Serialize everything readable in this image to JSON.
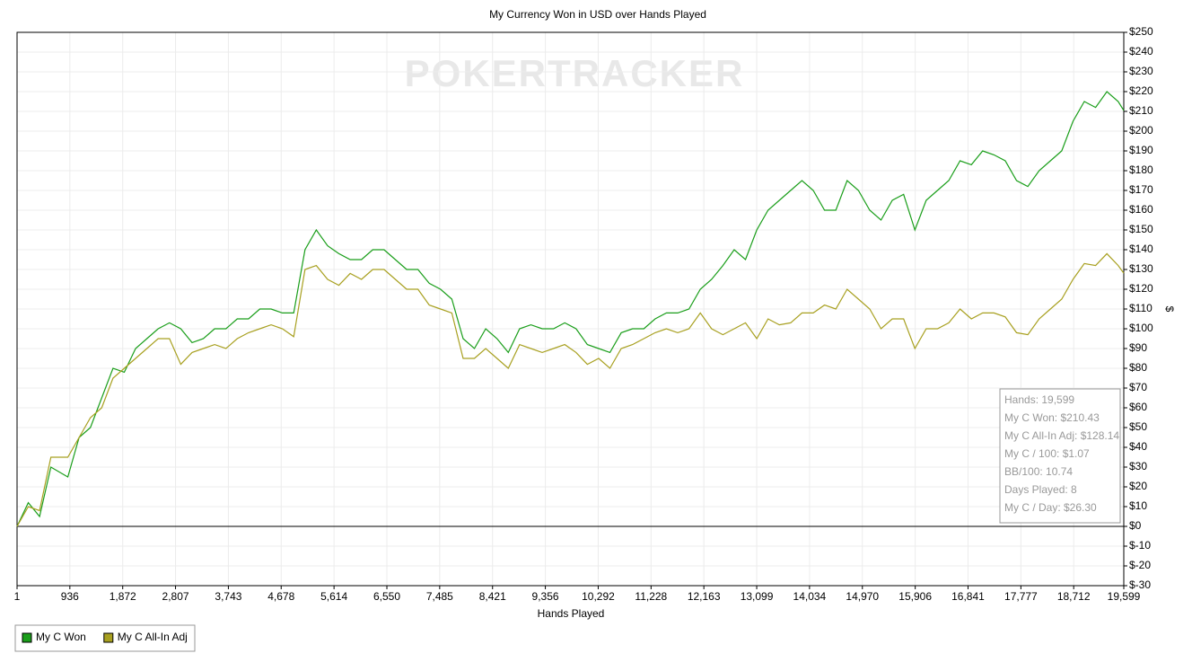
{
  "chart_data": {
    "type": "line",
    "title": "My Currency Won in USD over Hands Played",
    "watermark": "POKERTRACKER",
    "x_label": "Hands Played",
    "y_label": "$",
    "grid": true,
    "xlim": [
      1,
      19599
    ],
    "ylim": [
      -30,
      250
    ],
    "xticks": [
      1,
      936,
      {
        "value": 1872,
        "label": "1,872"
      },
      {
        "value": 2807,
        "label": "2,807"
      },
      {
        "value": 3743,
        "label": "3,743"
      },
      {
        "value": 4678,
        "label": "4,678"
      },
      {
        "value": 5614,
        "label": "5,614"
      },
      {
        "value": 6550,
        "label": "6,550"
      },
      {
        "value": 7485,
        "label": "7,485"
      },
      {
        "value": 8421,
        "label": "8,421"
      },
      {
        "value": 9356,
        "label": "9,356"
      },
      {
        "value": 10292,
        "label": "10,292"
      },
      {
        "value": 11228,
        "label": "11,228"
      },
      {
        "value": 12163,
        "label": "12,163"
      },
      {
        "value": 13099,
        "label": "13,099"
      },
      {
        "value": 14034,
        "label": "14,034"
      },
      {
        "value": 14970,
        "label": "14,970"
      },
      {
        "value": 15906,
        "label": "15,906"
      },
      {
        "value": 16841,
        "label": "16,841"
      },
      {
        "value": 17777,
        "label": "17,777"
      },
      {
        "value": 18712,
        "label": "18,712"
      },
      {
        "value": 19599,
        "label": "19,599"
      }
    ],
    "yticks": [
      {
        "value": -30,
        "label": "$-30"
      },
      {
        "value": -20,
        "label": "$-20"
      },
      {
        "value": -10,
        "label": "$-10"
      },
      {
        "value": 0,
        "label": "$0"
      },
      {
        "value": 10,
        "label": "$10"
      },
      {
        "value": 20,
        "label": "$20"
      },
      {
        "value": 30,
        "label": "$30"
      },
      {
        "value": 40,
        "label": "$40"
      },
      {
        "value": 50,
        "label": "$50"
      },
      {
        "value": 60,
        "label": "$60"
      },
      {
        "value": 70,
        "label": "$70"
      },
      {
        "value": 80,
        "label": "$80"
      },
      {
        "value": 90,
        "label": "$90"
      },
      {
        "value": 100,
        "label": "$100"
      },
      {
        "value": 110,
        "label": "$110"
      },
      {
        "value": 120,
        "label": "$120"
      },
      {
        "value": 130,
        "label": "$130"
      },
      {
        "value": 140,
        "label": "$140"
      },
      {
        "value": 150,
        "label": "$150"
      },
      {
        "value": 160,
        "label": "$160"
      },
      {
        "value": 170,
        "label": "$170"
      },
      {
        "value": 180,
        "label": "$180"
      },
      {
        "value": 190,
        "label": "$190"
      },
      {
        "value": 200,
        "label": "$200"
      },
      {
        "value": 210,
        "label": "$210"
      },
      {
        "value": 220,
        "label": "$220"
      },
      {
        "value": 230,
        "label": "$230"
      },
      {
        "value": 240,
        "label": "$240"
      },
      {
        "value": 250,
        "label": "$250"
      }
    ],
    "x": [
      1,
      200,
      400,
      600,
      900,
      1100,
      1300,
      1500,
      1700,
      1900,
      2100,
      2300,
      2500,
      2700,
      2900,
      3100,
      3300,
      3500,
      3700,
      3900,
      4100,
      4300,
      4500,
      4700,
      4900,
      5100,
      5300,
      5500,
      5700,
      5900,
      6100,
      6300,
      6500,
      6700,
      6900,
      7100,
      7300,
      7500,
      7700,
      7900,
      8100,
      8300,
      8500,
      8700,
      8900,
      9100,
      9300,
      9500,
      9700,
      9900,
      10100,
      10300,
      10500,
      10700,
      10900,
      11100,
      11300,
      11500,
      11700,
      11900,
      12100,
      12300,
      12500,
      12700,
      12900,
      13100,
      13300,
      13500,
      13700,
      13900,
      14100,
      14300,
      14500,
      14700,
      14900,
      15100,
      15300,
      15500,
      15700,
      15900,
      16100,
      16300,
      16500,
      16700,
      16900,
      17100,
      17300,
      17500,
      17700,
      17900,
      18100,
      18300,
      18500,
      18700,
      18900,
      19100,
      19300,
      19500,
      19599
    ],
    "series": [
      {
        "name": "My C Won",
        "color": "#1a9e1a",
        "values": [
          0,
          12,
          5,
          30,
          25,
          45,
          50,
          65,
          80,
          78,
          90,
          95,
          100,
          103,
          100,
          93,
          95,
          100,
          100,
          105,
          105,
          110,
          110,
          108,
          108,
          140,
          150,
          142,
          138,
          135,
          135,
          140,
          140,
          135,
          130,
          130,
          123,
          120,
          115,
          95,
          90,
          100,
          95,
          88,
          100,
          102,
          100,
          100,
          103,
          100,
          92,
          90,
          88,
          98,
          100,
          100,
          105,
          108,
          108,
          110,
          120,
          125,
          132,
          140,
          135,
          150,
          160,
          165,
          170,
          175,
          170,
          160,
          160,
          175,
          170,
          160,
          155,
          165,
          168,
          150,
          165,
          170,
          175,
          185,
          183,
          190,
          188,
          185,
          175,
          172,
          180,
          185,
          190,
          205,
          215,
          212,
          220,
          215,
          210.43
        ]
      },
      {
        "name": "My C All-In Adj",
        "color": "#a8a020",
        "values": [
          0,
          10,
          8,
          35,
          35,
          45,
          55,
          60,
          75,
          80,
          85,
          90,
          95,
          95,
          82,
          88,
          90,
          92,
          90,
          95,
          98,
          100,
          102,
          100,
          96,
          130,
          132,
          125,
          122,
          128,
          125,
          130,
          130,
          125,
          120,
          120,
          112,
          110,
          108,
          85,
          85,
          90,
          85,
          80,
          92,
          90,
          88,
          90,
          92,
          88,
          82,
          85,
          80,
          90,
          92,
          95,
          98,
          100,
          98,
          100,
          108,
          100,
          97,
          100,
          103,
          95,
          105,
          102,
          103,
          108,
          108,
          112,
          110,
          120,
          115,
          110,
          100,
          105,
          105,
          90,
          100,
          100,
          103,
          110,
          105,
          108,
          108,
          106,
          98,
          97,
          105,
          110,
          115,
          125,
          133,
          132,
          138,
          132,
          128.14
        ]
      }
    ],
    "info_box": [
      "Hands: 19,599",
      "My C Won: $210.43",
      "My C All-In Adj: $128.14",
      "My C / 100: $1.07",
      "BB/100: 10.74",
      "Days Played: 8",
      "My C / Day: $26.30"
    ]
  }
}
